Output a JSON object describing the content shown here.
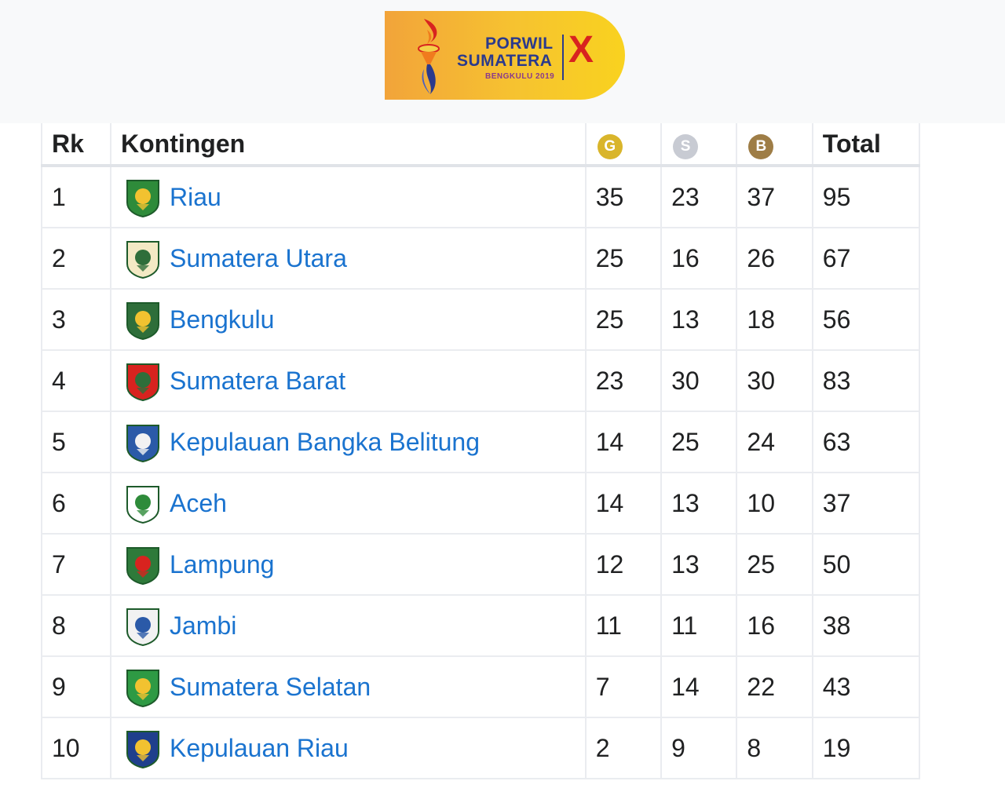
{
  "banner": {
    "line1": "PORWIL",
    "line2": "SUMATERA",
    "line3": "BENGKULU 2019",
    "numeral": "X",
    "colors": {
      "gradient_start": "#f2a43a",
      "gradient_end": "#f9d21f",
      "text": "#2b3a8c",
      "numeral": "#d8231f"
    }
  },
  "table": {
    "headers": {
      "rank": "Rk",
      "team": "Kontingen",
      "gold": "G",
      "silver": "S",
      "bronze": "B",
      "total": "Total"
    },
    "medal_colors": {
      "gold": "#d9b52b",
      "silver": "#c8cbd3",
      "bronze": "#9e7d46"
    },
    "link_color": "#1a73cf",
    "rows": [
      {
        "rank": "1",
        "team": "Riau",
        "gold": "35",
        "silver": "23",
        "bronze": "37",
        "total": "95",
        "crest": "crest-riau-icon"
      },
      {
        "rank": "2",
        "team": "Sumatera Utara",
        "gold": "25",
        "silver": "16",
        "bronze": "26",
        "total": "67",
        "crest": "crest-sumatera-utara-icon"
      },
      {
        "rank": "3",
        "team": "Bengkulu",
        "gold": "25",
        "silver": "13",
        "bronze": "18",
        "total": "56",
        "crest": "crest-bengkulu-icon"
      },
      {
        "rank": "4",
        "team": "Sumatera Barat",
        "gold": "23",
        "silver": "30",
        "bronze": "30",
        "total": "83",
        "crest": "crest-sumatera-barat-icon"
      },
      {
        "rank": "5",
        "team": "Kepulauan Bangka Belitung",
        "gold": "14",
        "silver": "25",
        "bronze": "24",
        "total": "63",
        "crest": "crest-bangka-belitung-icon"
      },
      {
        "rank": "6",
        "team": "Aceh",
        "gold": "14",
        "silver": "13",
        "bronze": "10",
        "total": "37",
        "crest": "crest-aceh-icon"
      },
      {
        "rank": "7",
        "team": "Lampung",
        "gold": "12",
        "silver": "13",
        "bronze": "25",
        "total": "50",
        "crest": "crest-lampung-icon"
      },
      {
        "rank": "8",
        "team": "Jambi",
        "gold": "11",
        "silver": "11",
        "bronze": "16",
        "total": "38",
        "crest": "crest-jambi-icon"
      },
      {
        "rank": "9",
        "team": "Sumatera Selatan",
        "gold": "7",
        "silver": "14",
        "bronze": "22",
        "total": "43",
        "crest": "crest-sumatera-selatan-icon"
      },
      {
        "rank": "10",
        "team": "Kepulauan Riau",
        "gold": "2",
        "silver": "9",
        "bronze": "8",
        "total": "19",
        "crest": "crest-kepulauan-riau-icon"
      }
    ]
  }
}
